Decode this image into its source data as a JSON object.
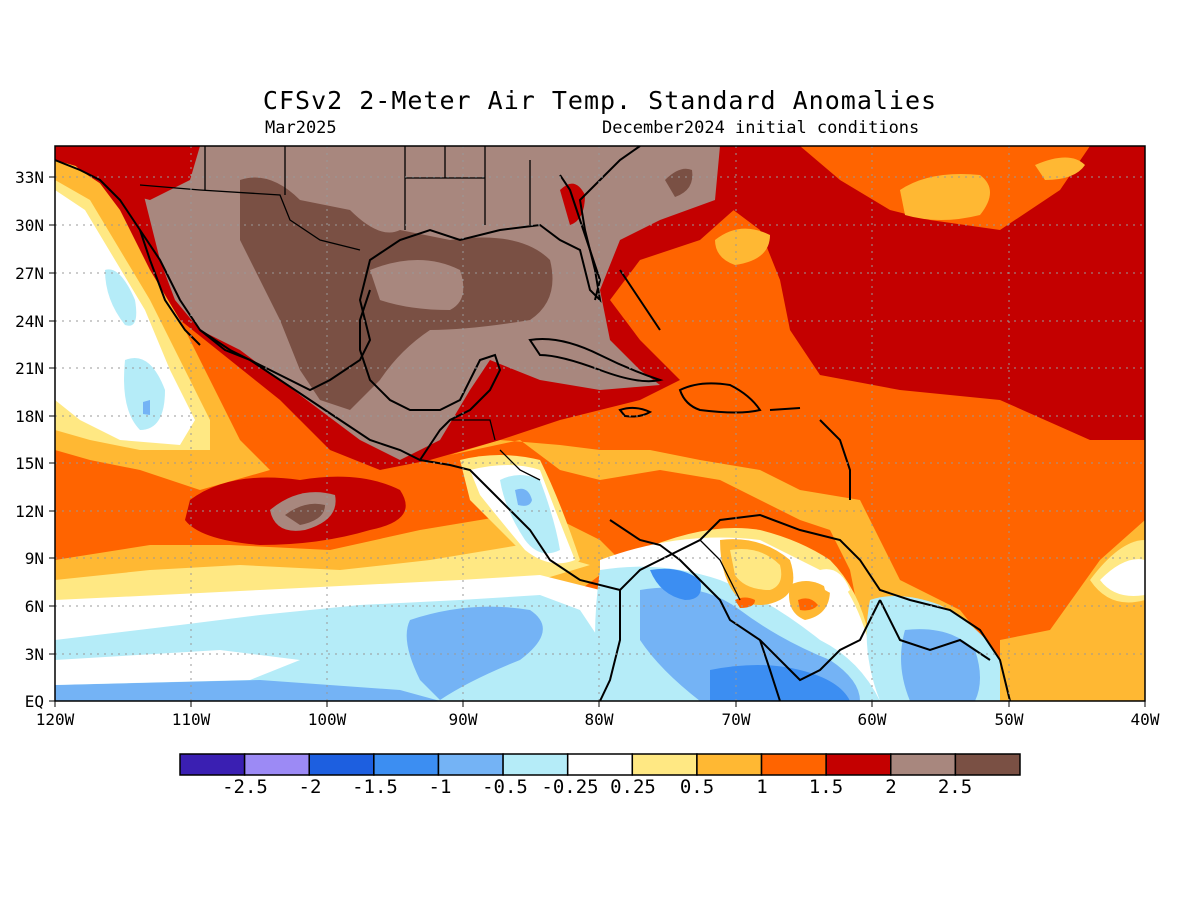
{
  "title": "CFSv2 2-Meter Air Temp. Standard Anomalies",
  "subtitle_left": "Mar2025",
  "subtitle_right": "December2024 initial conditions",
  "lat_labels": [
    "33N",
    "30N",
    "27N",
    "24N",
    "21N",
    "18N",
    "15N",
    "12N",
    "9N",
    "6N",
    "3N",
    "EQ"
  ],
  "lon_labels": [
    "120W",
    "110W",
    "100W",
    "90W",
    "80W",
    "70W",
    "60W",
    "50W",
    "40W"
  ],
  "colorbar": {
    "colors": [
      "#3a1fb2",
      "#9c8af5",
      "#1d5fe0",
      "#3c8ef2",
      "#74b3f5",
      "#b5ecf8",
      "#ffffff",
      "#ffe883",
      "#ffb833",
      "#ff6400",
      "#c40000",
      "#a8877e",
      "#7a5044"
    ],
    "labels": [
      "-2.5",
      "-2",
      "-1.5",
      "-1",
      "-0.5",
      "-0.25",
      "0.25",
      "0.5",
      "1",
      "1.5",
      "2",
      "2.5"
    ]
  },
  "palette": {
    "white": "#ffffff",
    "light_cyan": "#b5ecf8",
    "light_blue": "#74b3f5",
    "blue": "#3c8ef2",
    "yellow": "#ffe883",
    "orange_light": "#ffb833",
    "orange": "#ff6400",
    "red": "#c40000",
    "brown_light": "#a8877e",
    "brown_dark": "#7a5044"
  }
}
